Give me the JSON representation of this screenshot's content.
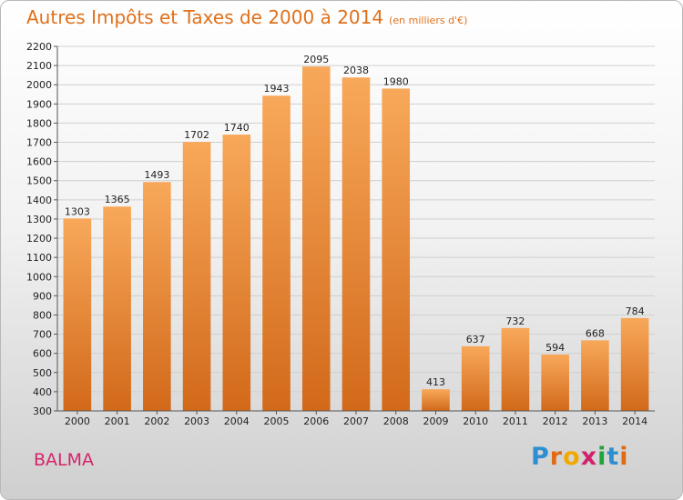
{
  "chart_data": {
    "type": "bar",
    "title": "Autres Impôts et Taxes de 2000 à 2014",
    "subtitle": "(en milliers d'€)",
    "categories": [
      "2000",
      "2001",
      "2002",
      "2003",
      "2004",
      "2005",
      "2006",
      "2007",
      "2008",
      "2009",
      "2010",
      "2011",
      "2012",
      "2013",
      "2014"
    ],
    "values": [
      1303,
      1365,
      1493,
      1702,
      1740,
      1943,
      2095,
      2038,
      1980,
      413,
      637,
      732,
      594,
      668,
      784
    ],
    "ylim": [
      300,
      2200
    ],
    "yticks": [
      300,
      400,
      500,
      600,
      700,
      800,
      900,
      1000,
      1100,
      1200,
      1300,
      1400,
      1500,
      1600,
      1700,
      1800,
      1900,
      2000,
      2100,
      2200
    ],
    "grid": true,
    "bar_color_top": "#f8a85a",
    "bar_color_bottom": "#d2691a"
  },
  "footer": {
    "city": "BALMA",
    "logo_letters": [
      "P",
      "r",
      "o",
      "x",
      "i",
      "t",
      "i"
    ],
    "logo_colors": [
      "#2e8fd0",
      "#e06b16",
      "#f2a800",
      "#d2226a",
      "#1fa33a",
      "#2e8fd0",
      "#e06b16"
    ]
  }
}
